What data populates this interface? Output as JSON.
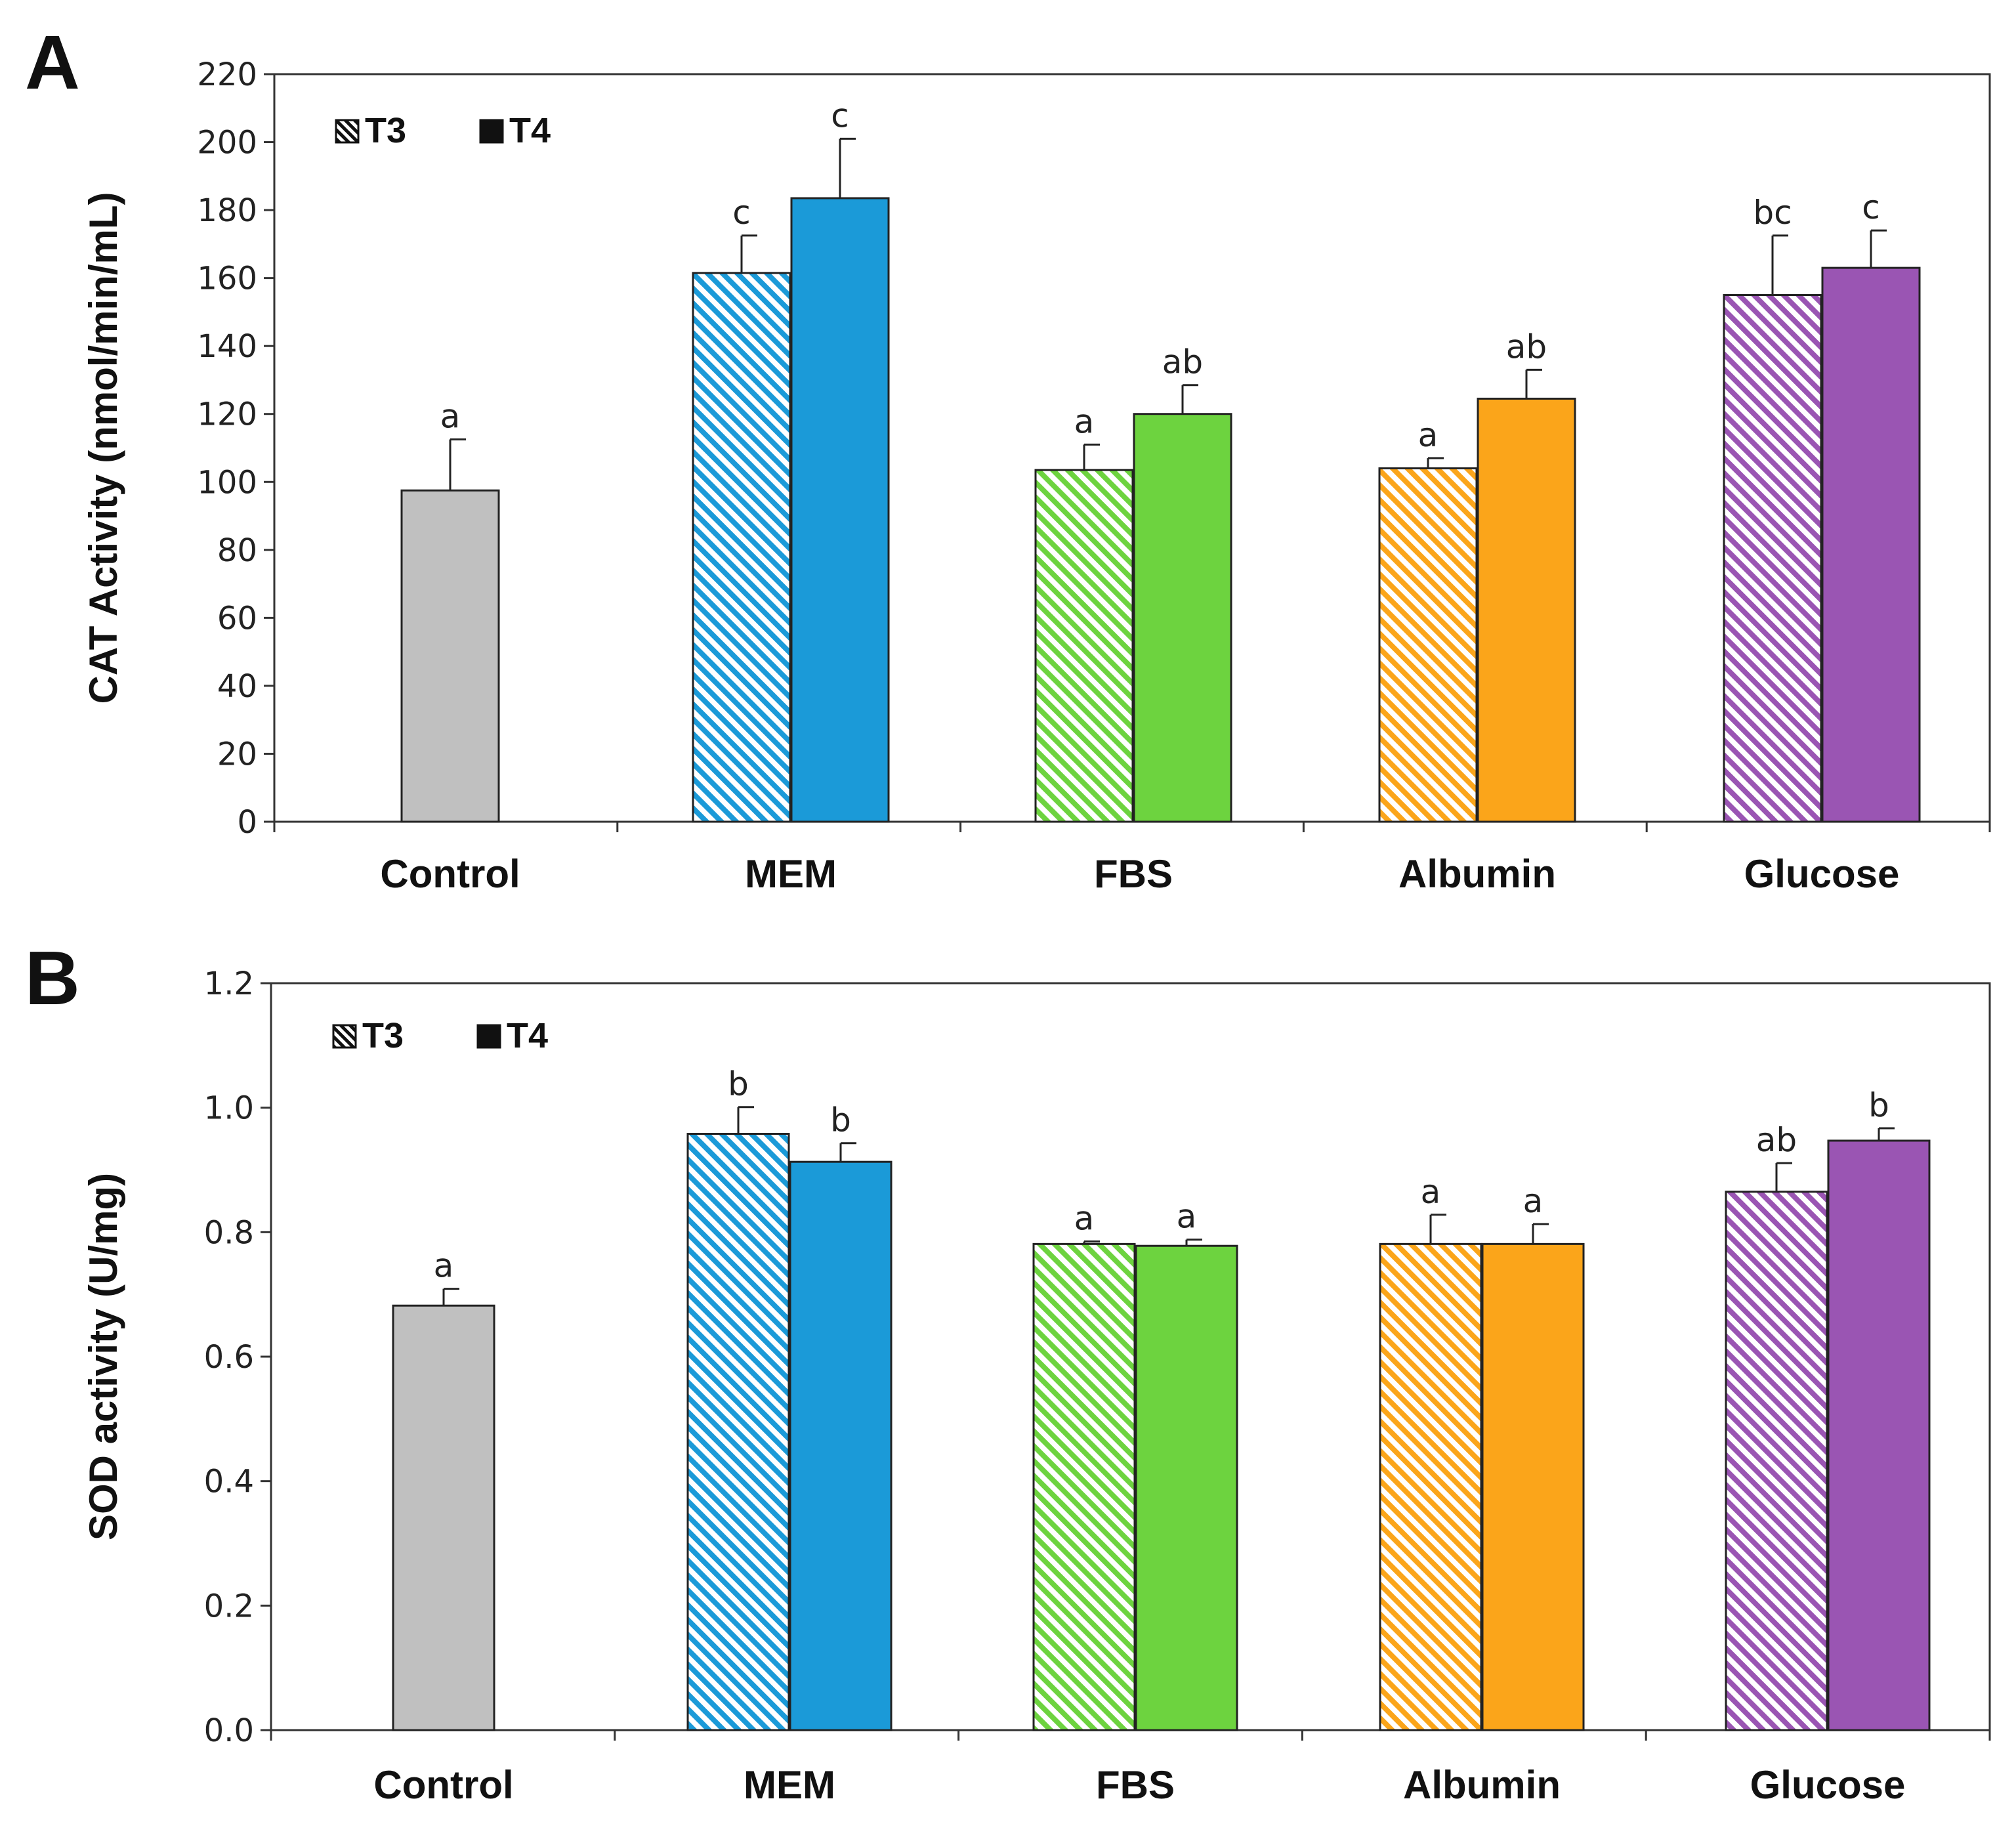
{
  "figure": {
    "colors": {
      "Control": "#c0c0c0",
      "MEM": "#1b9ad8",
      "FBS": "#6dd33f",
      "Albumin": "#fba51a",
      "Glucose": "#9a55b3",
      "axis": "#333333",
      "outline": "#222222"
    }
  },
  "chart_data": [
    {
      "panel": "A",
      "type": "bar",
      "ylabel": "CAT Activity (nmol/min/mL)",
      "ylim": [
        0,
        220
      ],
      "yticks": [
        "0",
        "20",
        "40",
        "60",
        "80",
        "100",
        "120",
        "140",
        "160",
        "180",
        "200",
        "220"
      ],
      "categories": [
        "Control",
        "MEM",
        "FBS",
        "Albumin",
        "Glucose"
      ],
      "legend": [
        {
          "name": "T3",
          "pattern": "hatched"
        },
        {
          "name": "T4",
          "pattern": "solid"
        }
      ],
      "bars": [
        {
          "category": "Control",
          "series": "single",
          "value": 97.5,
          "error": 15,
          "sig": "a"
        },
        {
          "category": "MEM",
          "series": "T3",
          "value": 161.5,
          "error": 11,
          "sig": "c"
        },
        {
          "category": "MEM",
          "series": "T4",
          "value": 183.5,
          "error": 17.5,
          "sig": "c"
        },
        {
          "category": "FBS",
          "series": "T3",
          "value": 103.5,
          "error": 7.5,
          "sig": "a"
        },
        {
          "category": "FBS",
          "series": "T4",
          "value": 120,
          "error": 8.5,
          "sig": "ab"
        },
        {
          "category": "Albumin",
          "series": "T3",
          "value": 104,
          "error": 3,
          "sig": "a"
        },
        {
          "category": "Albumin",
          "series": "T4",
          "value": 124.5,
          "error": 8.5,
          "sig": "ab"
        },
        {
          "category": "Glucose",
          "series": "T3",
          "value": 155,
          "error": 17.5,
          "sig": "bc"
        },
        {
          "category": "Glucose",
          "series": "T4",
          "value": 163,
          "error": 11,
          "sig": "c"
        }
      ]
    },
    {
      "panel": "B",
      "type": "bar",
      "ylabel": "SOD activity (U/mg)",
      "ylim": [
        0,
        1.2
      ],
      "yticks": [
        "0.0",
        "0.2",
        "0.4",
        "0.6",
        "0.8",
        "1.0",
        "1.2"
      ],
      "categories": [
        "Control",
        "MEM",
        "FBS",
        "Albumin",
        "Glucose"
      ],
      "legend": [
        {
          "name": "T3",
          "pattern": "hatched"
        },
        {
          "name": "T4",
          "pattern": "solid"
        }
      ],
      "bars": [
        {
          "category": "Control",
          "series": "single",
          "value": 0.682,
          "error": 0.027,
          "sig": "a"
        },
        {
          "category": "MEM",
          "series": "T3",
          "value": 0.958,
          "error": 0.043,
          "sig": "b"
        },
        {
          "category": "MEM",
          "series": "T4",
          "value": 0.913,
          "error": 0.03,
          "sig": "b"
        },
        {
          "category": "FBS",
          "series": "T3",
          "value": 0.781,
          "error": 0.004,
          "sig": "a"
        },
        {
          "category": "FBS",
          "series": "T4",
          "value": 0.778,
          "error": 0.01,
          "sig": "a"
        },
        {
          "category": "Albumin",
          "series": "T3",
          "value": 0.781,
          "error": 0.047,
          "sig": "a"
        },
        {
          "category": "Albumin",
          "series": "T4",
          "value": 0.781,
          "error": 0.032,
          "sig": "a"
        },
        {
          "category": "Glucose",
          "series": "T3",
          "value": 0.865,
          "error": 0.046,
          "sig": "ab"
        },
        {
          "category": "Glucose",
          "series": "T4",
          "value": 0.947,
          "error": 0.02,
          "sig": "b"
        }
      ]
    }
  ]
}
